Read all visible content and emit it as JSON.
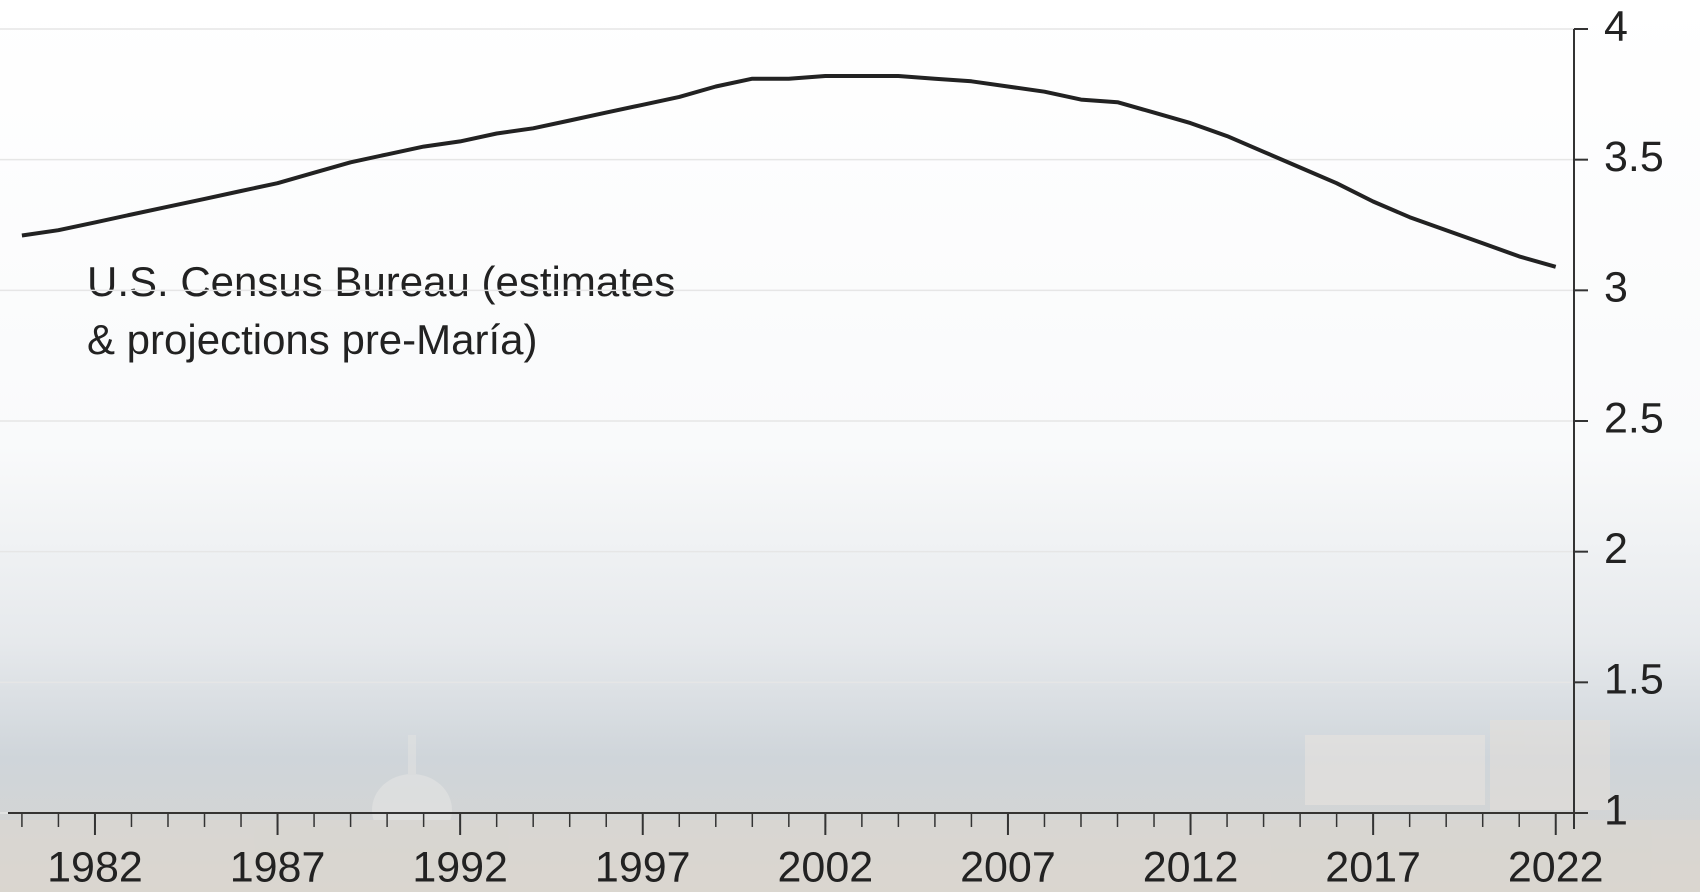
{
  "chart_data": {
    "type": "line",
    "annotation": [
      "U.S. Census Bureau (estimates",
      "& projections pre-María)"
    ],
    "x": [
      1980,
      1981,
      1982,
      1983,
      1984,
      1985,
      1986,
      1987,
      1988,
      1989,
      1990,
      1991,
      1992,
      1993,
      1994,
      1995,
      1996,
      1997,
      1998,
      1999,
      2000,
      2001,
      2002,
      2003,
      2004,
      2005,
      2006,
      2007,
      2008,
      2009,
      2010,
      2011,
      2012,
      2013,
      2014,
      2015,
      2016,
      2017,
      2018,
      2019,
      2020,
      2021,
      2022
    ],
    "series": [
      {
        "color": "#222222",
        "values": [
          3.21,
          3.23,
          3.26,
          3.29,
          3.32,
          3.35,
          3.38,
          3.41,
          3.45,
          3.49,
          3.52,
          3.55,
          3.57,
          3.6,
          3.62,
          3.65,
          3.68,
          3.71,
          3.74,
          3.78,
          3.81,
          3.81,
          3.82,
          3.82,
          3.82,
          3.81,
          3.8,
          3.78,
          3.76,
          3.73,
          3.72,
          3.68,
          3.64,
          3.59,
          3.53,
          3.47,
          3.41,
          3.34,
          3.28,
          3.23,
          3.18,
          3.13,
          3.09
        ]
      }
    ],
    "xlim": [
      1979.4,
      2022.5
    ],
    "xticks": [
      1982,
      1987,
      1992,
      1997,
      2002,
      2007,
      2012,
      2017,
      2022
    ],
    "ylim": [
      1,
      4
    ],
    "yticks": [
      1,
      1.5,
      2,
      2.5,
      3,
      3.5,
      4
    ],
    "grid": true
  }
}
